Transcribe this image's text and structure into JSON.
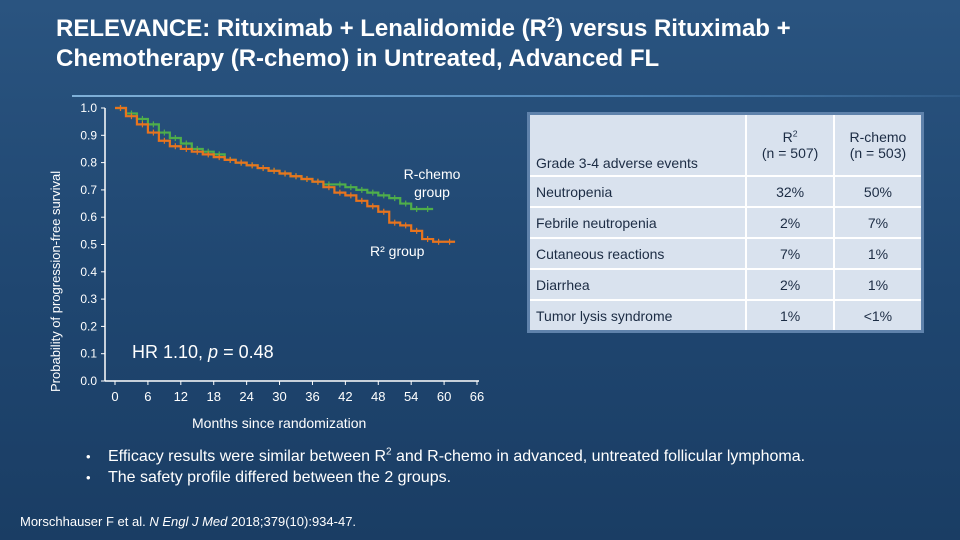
{
  "slide": {
    "title_line1_pre": "RELEVANCE: Rituximab + Lenalidomide (R",
    "title_sup": "2",
    "title_line1_post": ") versus Rituximab +",
    "title_line2": "Chemotherapy (R-chemo) in Untreated, Advanced FL"
  },
  "chart_labels": {
    "hr_pre": "HR 1.10, ",
    "hr_p": "p",
    "hr_post": " = 0.48",
    "rchemo_line1": "R-chemo",
    "rchemo_line2": "group",
    "r2_label": "R² group"
  },
  "chart_data": {
    "type": "line",
    "ylabel": "Probability of progression-free survival",
    "xlabel": "Months since randomization",
    "xlim": [
      0,
      66
    ],
    "ylim": [
      0,
      1.0
    ],
    "x_ticks": [
      0,
      6,
      12,
      18,
      24,
      30,
      36,
      42,
      48,
      54,
      60,
      66
    ],
    "y_ticks": [
      "0.0",
      "0.1",
      "0.2",
      "0.3",
      "0.4",
      "0.5",
      "0.6",
      "0.7",
      "0.8",
      "0.9",
      "1.0"
    ],
    "grid": false,
    "series": [
      {
        "name": "R-chemo group",
        "color": "#4fae4a",
        "x": [
          0,
          2,
          4,
          6,
          8,
          10,
          12,
          14,
          16,
          18,
          20,
          22,
          24,
          26,
          28,
          30,
          32,
          34,
          36,
          38,
          40,
          42,
          44,
          46,
          48,
          50,
          52,
          54,
          56,
          58
        ],
        "y": [
          1.0,
          0.98,
          0.96,
          0.94,
          0.91,
          0.89,
          0.87,
          0.85,
          0.84,
          0.83,
          0.81,
          0.8,
          0.79,
          0.78,
          0.77,
          0.76,
          0.75,
          0.74,
          0.73,
          0.72,
          0.72,
          0.71,
          0.7,
          0.69,
          0.68,
          0.67,
          0.65,
          0.63,
          0.63,
          0.63
        ]
      },
      {
        "name": "R² group",
        "color": "#e8741e",
        "x": [
          0,
          2,
          4,
          6,
          8,
          10,
          12,
          14,
          16,
          18,
          20,
          22,
          24,
          26,
          28,
          30,
          32,
          34,
          36,
          38,
          40,
          42,
          44,
          46,
          48,
          50,
          52,
          54,
          56,
          58,
          60,
          62
        ],
        "y": [
          1.0,
          0.97,
          0.94,
          0.91,
          0.88,
          0.86,
          0.85,
          0.84,
          0.83,
          0.82,
          0.81,
          0.8,
          0.79,
          0.78,
          0.77,
          0.76,
          0.75,
          0.74,
          0.73,
          0.71,
          0.69,
          0.68,
          0.66,
          0.64,
          0.62,
          0.58,
          0.57,
          0.55,
          0.52,
          0.51,
          0.51,
          0.51
        ]
      }
    ]
  },
  "ae_table": {
    "header": {
      "event": "Grade 3-4 adverse events",
      "r2_line1_pre": "R",
      "r2_line1_sup": "2",
      "r2_line2": "(n = 507)",
      "rc_line1": "R-chemo",
      "rc_line2": "(n = 503)"
    },
    "rows": [
      {
        "event": "Neutropenia",
        "r2": "32%",
        "rc": "50%"
      },
      {
        "event": "Febrile neutropenia",
        "r2": "2%",
        "rc": "7%"
      },
      {
        "event": "Cutaneous reactions",
        "r2": "7%",
        "rc": "1%"
      },
      {
        "event": "Diarrhea",
        "r2": "2%",
        "rc": "1%"
      },
      {
        "event": "Tumor lysis syndrome",
        "r2": "1%",
        "rc": "<1%"
      }
    ]
  },
  "bullets": {
    "b1_pre": "Efficacy results were similar between R",
    "b1_sup": "2",
    "b1_post": " and R-chemo in advanced, untreated follicular lymphoma.",
    "b2": "The safety profile differed between the 2 groups.",
    "marker": "•"
  },
  "citation": {
    "pre": "Morschhauser F et al. ",
    "journal": "N Engl J Med",
    "post": " 2018;379(10):934-47."
  }
}
